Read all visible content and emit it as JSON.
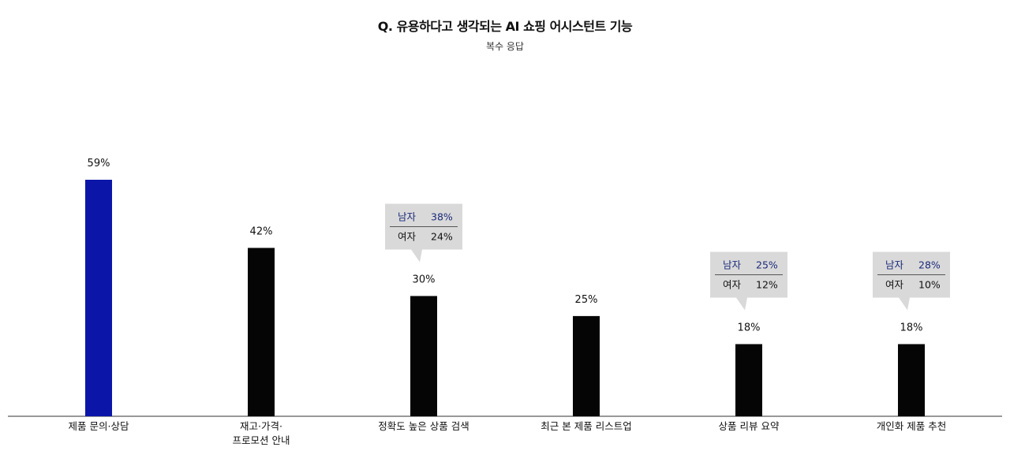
{
  "title": "Q. 유용하다고 생각되는 AI 쇼핑 어시스턴트 기능",
  "subtitle": "복수 응답",
  "colors": {
    "highlight_bar": "#0b16a8",
    "bar": "#050505",
    "axis": "#333333",
    "callout_bg": "#d9d9d9",
    "male_text": "#1c2a7a",
    "female_text": "#111111"
  },
  "chart_data": {
    "type": "bar",
    "title": "Q. 유용하다고 생각되는 AI 쇼핑 어시스턴트 기능",
    "subtitle": "복수 응답",
    "categories": [
      [
        "제품 문의·상담"
      ],
      [
        "재고·가격·",
        "프로모션 안내"
      ],
      [
        "정확도 높은 상품 검색"
      ],
      [
        "최근 본 제품 리스트업"
      ],
      [
        "상품 리뷰 요약"
      ],
      [
        "개인화 제품 추천"
      ]
    ],
    "values": [
      59,
      42,
      30,
      25,
      18,
      18
    ],
    "value_labels": [
      "59%",
      "42%",
      "30%",
      "25%",
      "18%",
      "18%"
    ],
    "highlight_index": 0,
    "ylim": [
      0,
      59
    ],
    "grid": false,
    "xlabel": "",
    "ylabel": "",
    "callouts": [
      {
        "category_index": 2,
        "rows": [
          {
            "label": "남자",
            "value": "38%"
          },
          {
            "label": "여자",
            "value": "24%"
          }
        ]
      },
      {
        "category_index": 4,
        "rows": [
          {
            "label": "남자",
            "value": "25%"
          },
          {
            "label": "여자",
            "value": "12%"
          }
        ]
      },
      {
        "category_index": 5,
        "rows": [
          {
            "label": "남자",
            "value": "28%"
          },
          {
            "label": "여자",
            "value": "10%"
          }
        ]
      }
    ]
  }
}
